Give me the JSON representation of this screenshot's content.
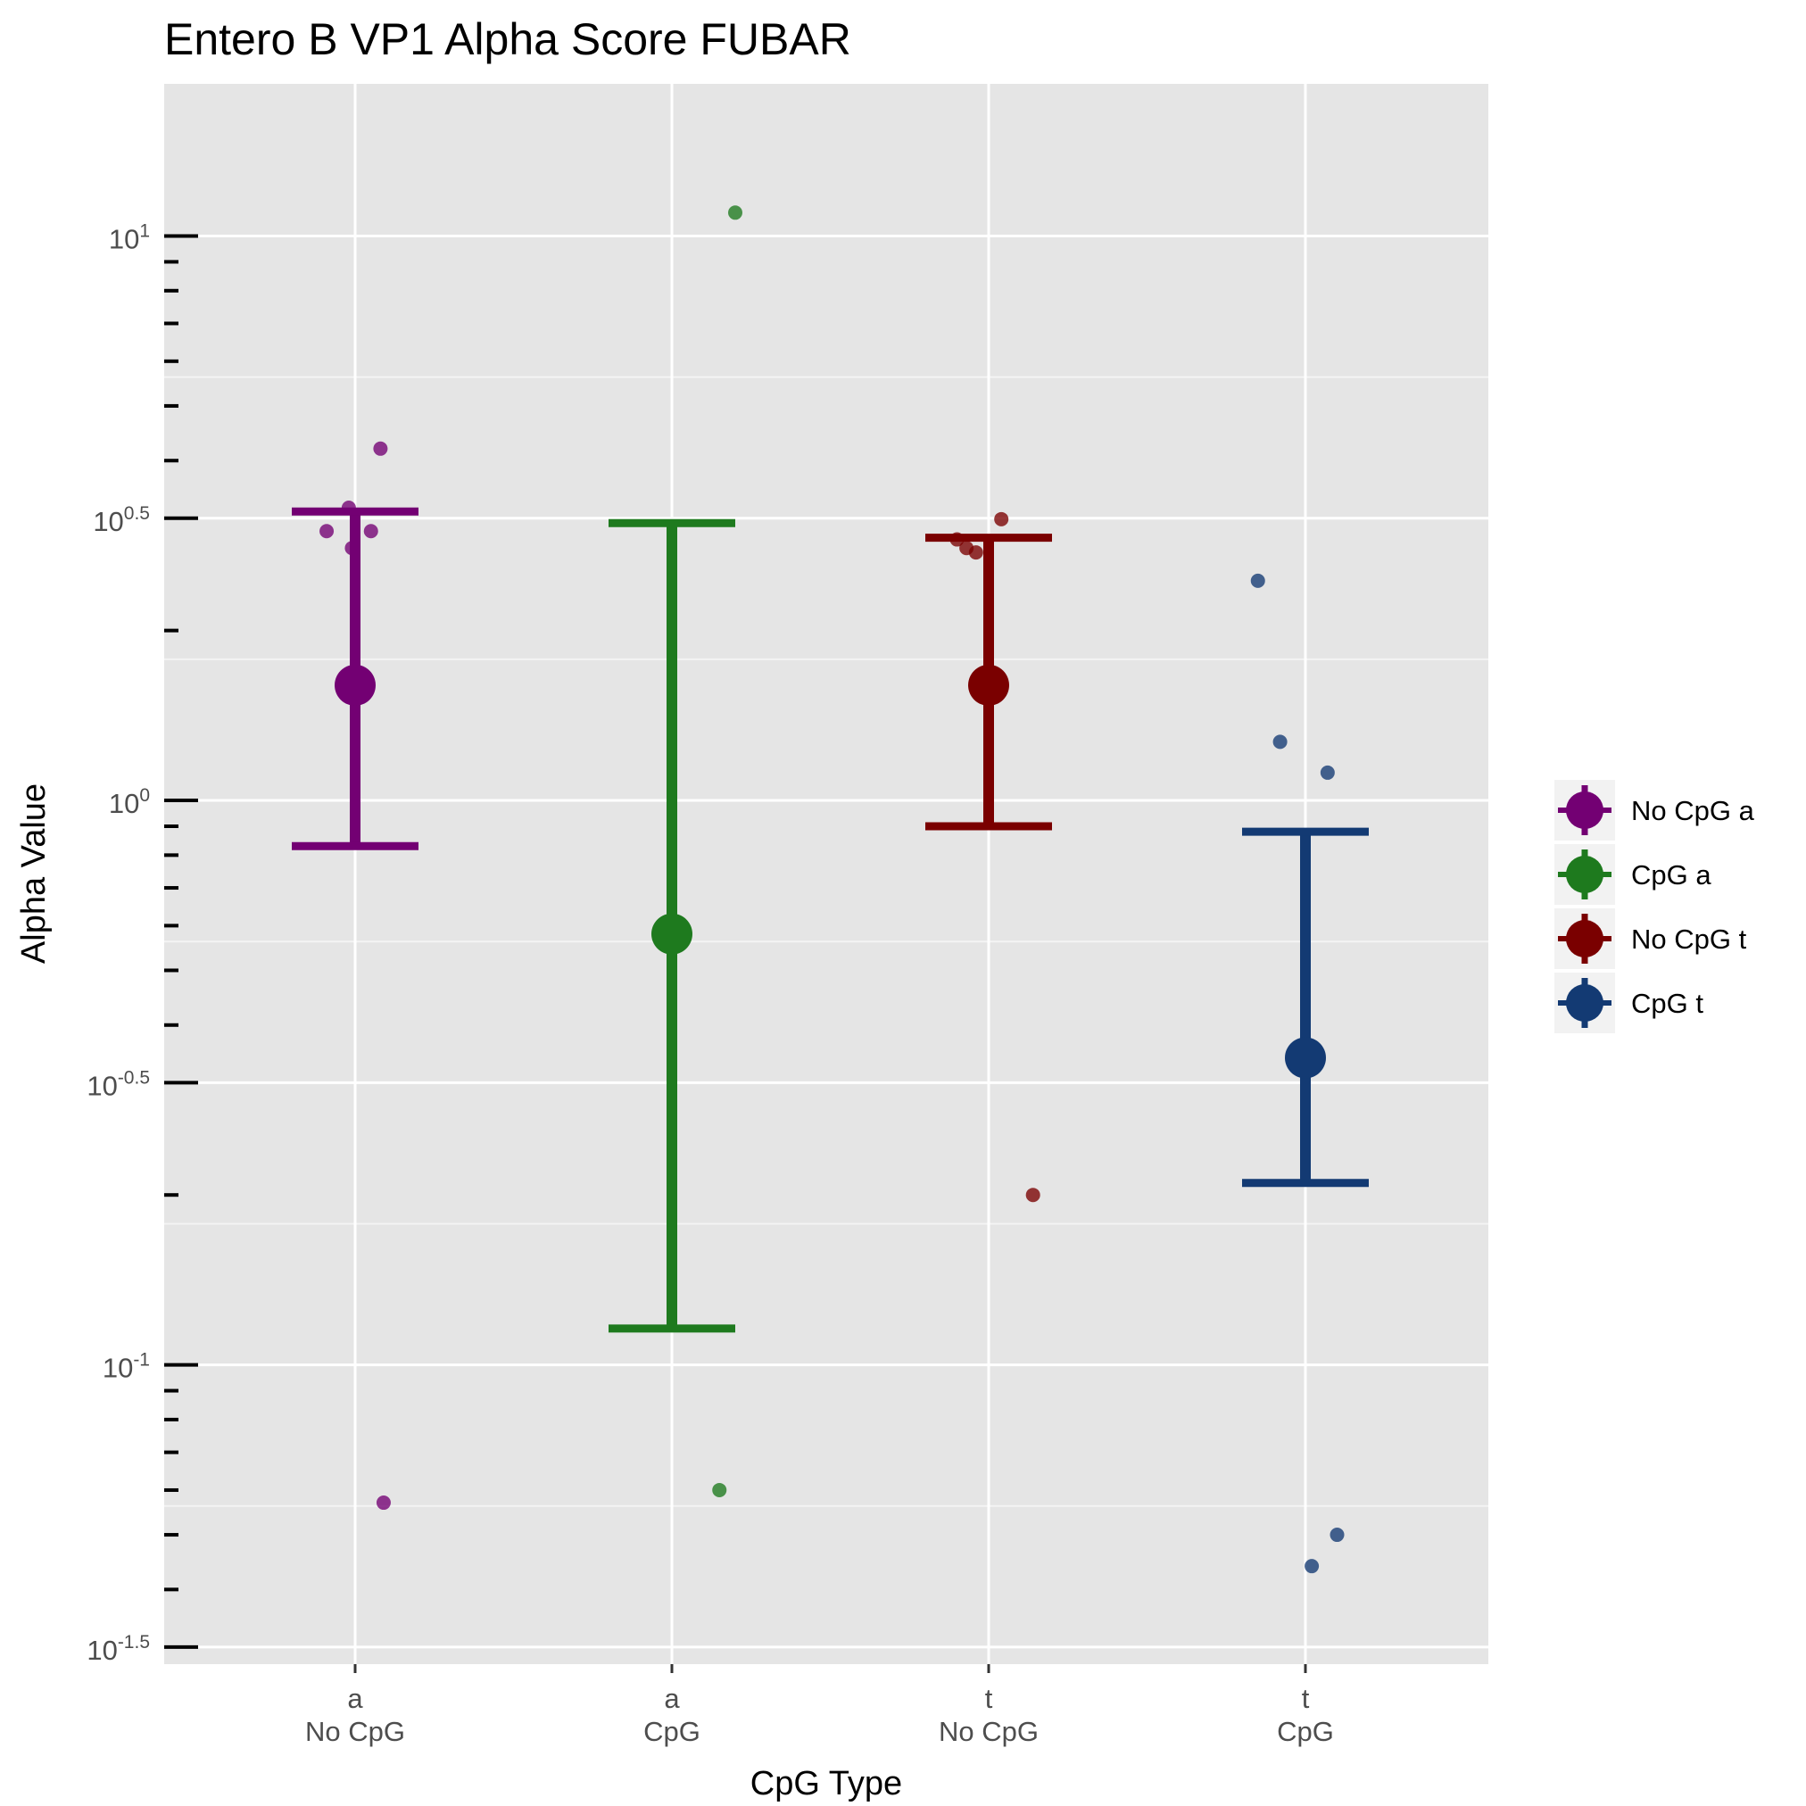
{
  "chart_data": {
    "type": "scatter",
    "title": "Entero B VP1 Alpha Score FUBAR",
    "xlabel": "CpG Type",
    "ylabel": "Alpha Value",
    "y_scale": "log10",
    "ylim": [
      0.0295,
      18.6
    ],
    "grid": true,
    "legend_position": "right",
    "y_ticks": [
      {
        "base": "10",
        "exp": "1",
        "value": 10
      },
      {
        "base": "10",
        "exp": "0.5",
        "value": 3.1623
      },
      {
        "base": "10",
        "exp": "0",
        "value": 1
      },
      {
        "base": "10",
        "exp": "-0.5",
        "value": 0.31623
      },
      {
        "base": "10",
        "exp": "-1",
        "value": 0.1
      },
      {
        "base": "10",
        "exp": "-1.5",
        "value": 0.031623
      }
    ],
    "y_minor_ticks": [
      9,
      8,
      7,
      6,
      5,
      4,
      2,
      0.9,
      0.8,
      0.7,
      0.6,
      0.5,
      0.4,
      0.2,
      0.09,
      0.08,
      0.07,
      0.06,
      0.05,
      0.04
    ],
    "categories": [
      {
        "line1": "a",
        "line2": "No CpG"
      },
      {
        "line1": "a",
        "line2": "CpG"
      },
      {
        "line1": "t",
        "line2": "No CpG"
      },
      {
        "line1": "t",
        "line2": "CpG"
      }
    ],
    "series": [
      {
        "name": "No CpG a",
        "color": "#730073",
        "mean": 1.6,
        "ci": [
          0.83,
          3.25
        ],
        "points": [
          [
            0.08,
            4.2
          ],
          [
            -0.02,
            3.3
          ],
          [
            -0.09,
            3.0
          ],
          [
            0.05,
            3.0
          ],
          [
            -0.01,
            2.8
          ],
          [
            0.09,
            0.057
          ]
        ]
      },
      {
        "name": "CpG a",
        "color": "#1e7a1e",
        "mean": 0.58,
        "ci": [
          0.116,
          3.1
        ],
        "points": [
          [
            0.2,
            11.0
          ],
          [
            0.15,
            0.06
          ]
        ]
      },
      {
        "name": "No CpG t",
        "color": "#7a0000",
        "mean": 1.6,
        "ci": [
          0.9,
          2.92
        ],
        "points": [
          [
            0.04,
            3.15
          ],
          [
            -0.1,
            2.9
          ],
          [
            -0.07,
            2.8
          ],
          [
            -0.04,
            2.75
          ],
          [
            0.14,
            0.2
          ]
        ]
      },
      {
        "name": "CpG t",
        "color": "#133a73",
        "mean": 0.35,
        "ci": [
          0.21,
          0.88
        ],
        "points": [
          [
            -0.15,
            2.45
          ],
          [
            -0.08,
            1.27
          ],
          [
            0.07,
            1.12
          ],
          [
            0.1,
            0.05
          ],
          [
            0.02,
            0.044
          ]
        ]
      }
    ]
  }
}
